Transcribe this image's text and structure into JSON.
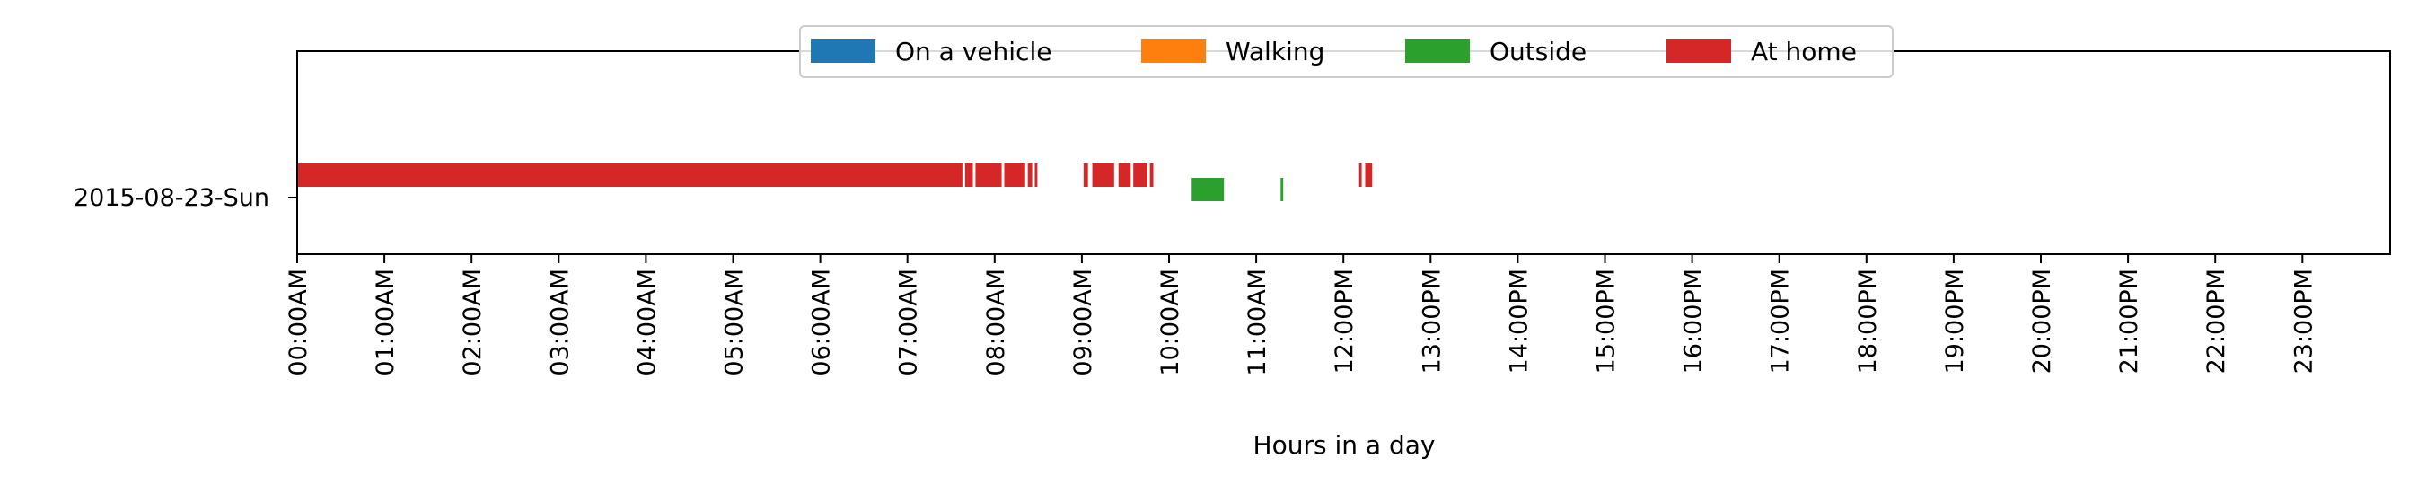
{
  "chart_data": {
    "type": "timeline",
    "xlabel": "Hours in a day",
    "xlim_hours": [
      0,
      24
    ],
    "row_label": "2015-08-23-Sun",
    "x_ticks": [
      "00:00AM",
      "01:00AM",
      "02:00AM",
      "03:00AM",
      "04:00AM",
      "05:00AM",
      "06:00AM",
      "07:00AM",
      "08:00AM",
      "09:00AM",
      "10:00AM",
      "11:00AM",
      "12:00PM",
      "13:00PM",
      "14:00PM",
      "15:00PM",
      "16:00PM",
      "17:00PM",
      "18:00PM",
      "19:00PM",
      "20:00PM",
      "21:00PM",
      "22:00PM",
      "23:00PM"
    ],
    "legend": [
      {
        "name": "On a vehicle",
        "color": "#1f77b4"
      },
      {
        "name": "Walking",
        "color": "#ff7f0e"
      },
      {
        "name": "Outside",
        "color": "#2ca02c"
      },
      {
        "name": "At home",
        "color": "#d62728"
      }
    ],
    "legend_position": "top-center",
    "series": [
      {
        "name": "At home",
        "row": "upper",
        "intervals": [
          [
            0.0,
            7.63
          ],
          [
            7.66,
            7.75
          ],
          [
            7.78,
            8.08
          ],
          [
            8.11,
            8.35
          ],
          [
            8.38,
            8.43
          ],
          [
            8.46,
            8.49
          ],
          [
            9.02,
            9.07
          ],
          [
            9.12,
            9.37
          ],
          [
            9.42,
            9.56
          ],
          [
            9.59,
            9.75
          ],
          [
            9.78,
            9.82
          ],
          [
            12.18,
            12.21
          ],
          [
            12.25,
            12.33
          ]
        ]
      },
      {
        "name": "Outside",
        "row": "lower",
        "intervals": [
          [
            10.26,
            10.63
          ],
          [
            11.28,
            11.31
          ]
        ]
      }
    ]
  }
}
